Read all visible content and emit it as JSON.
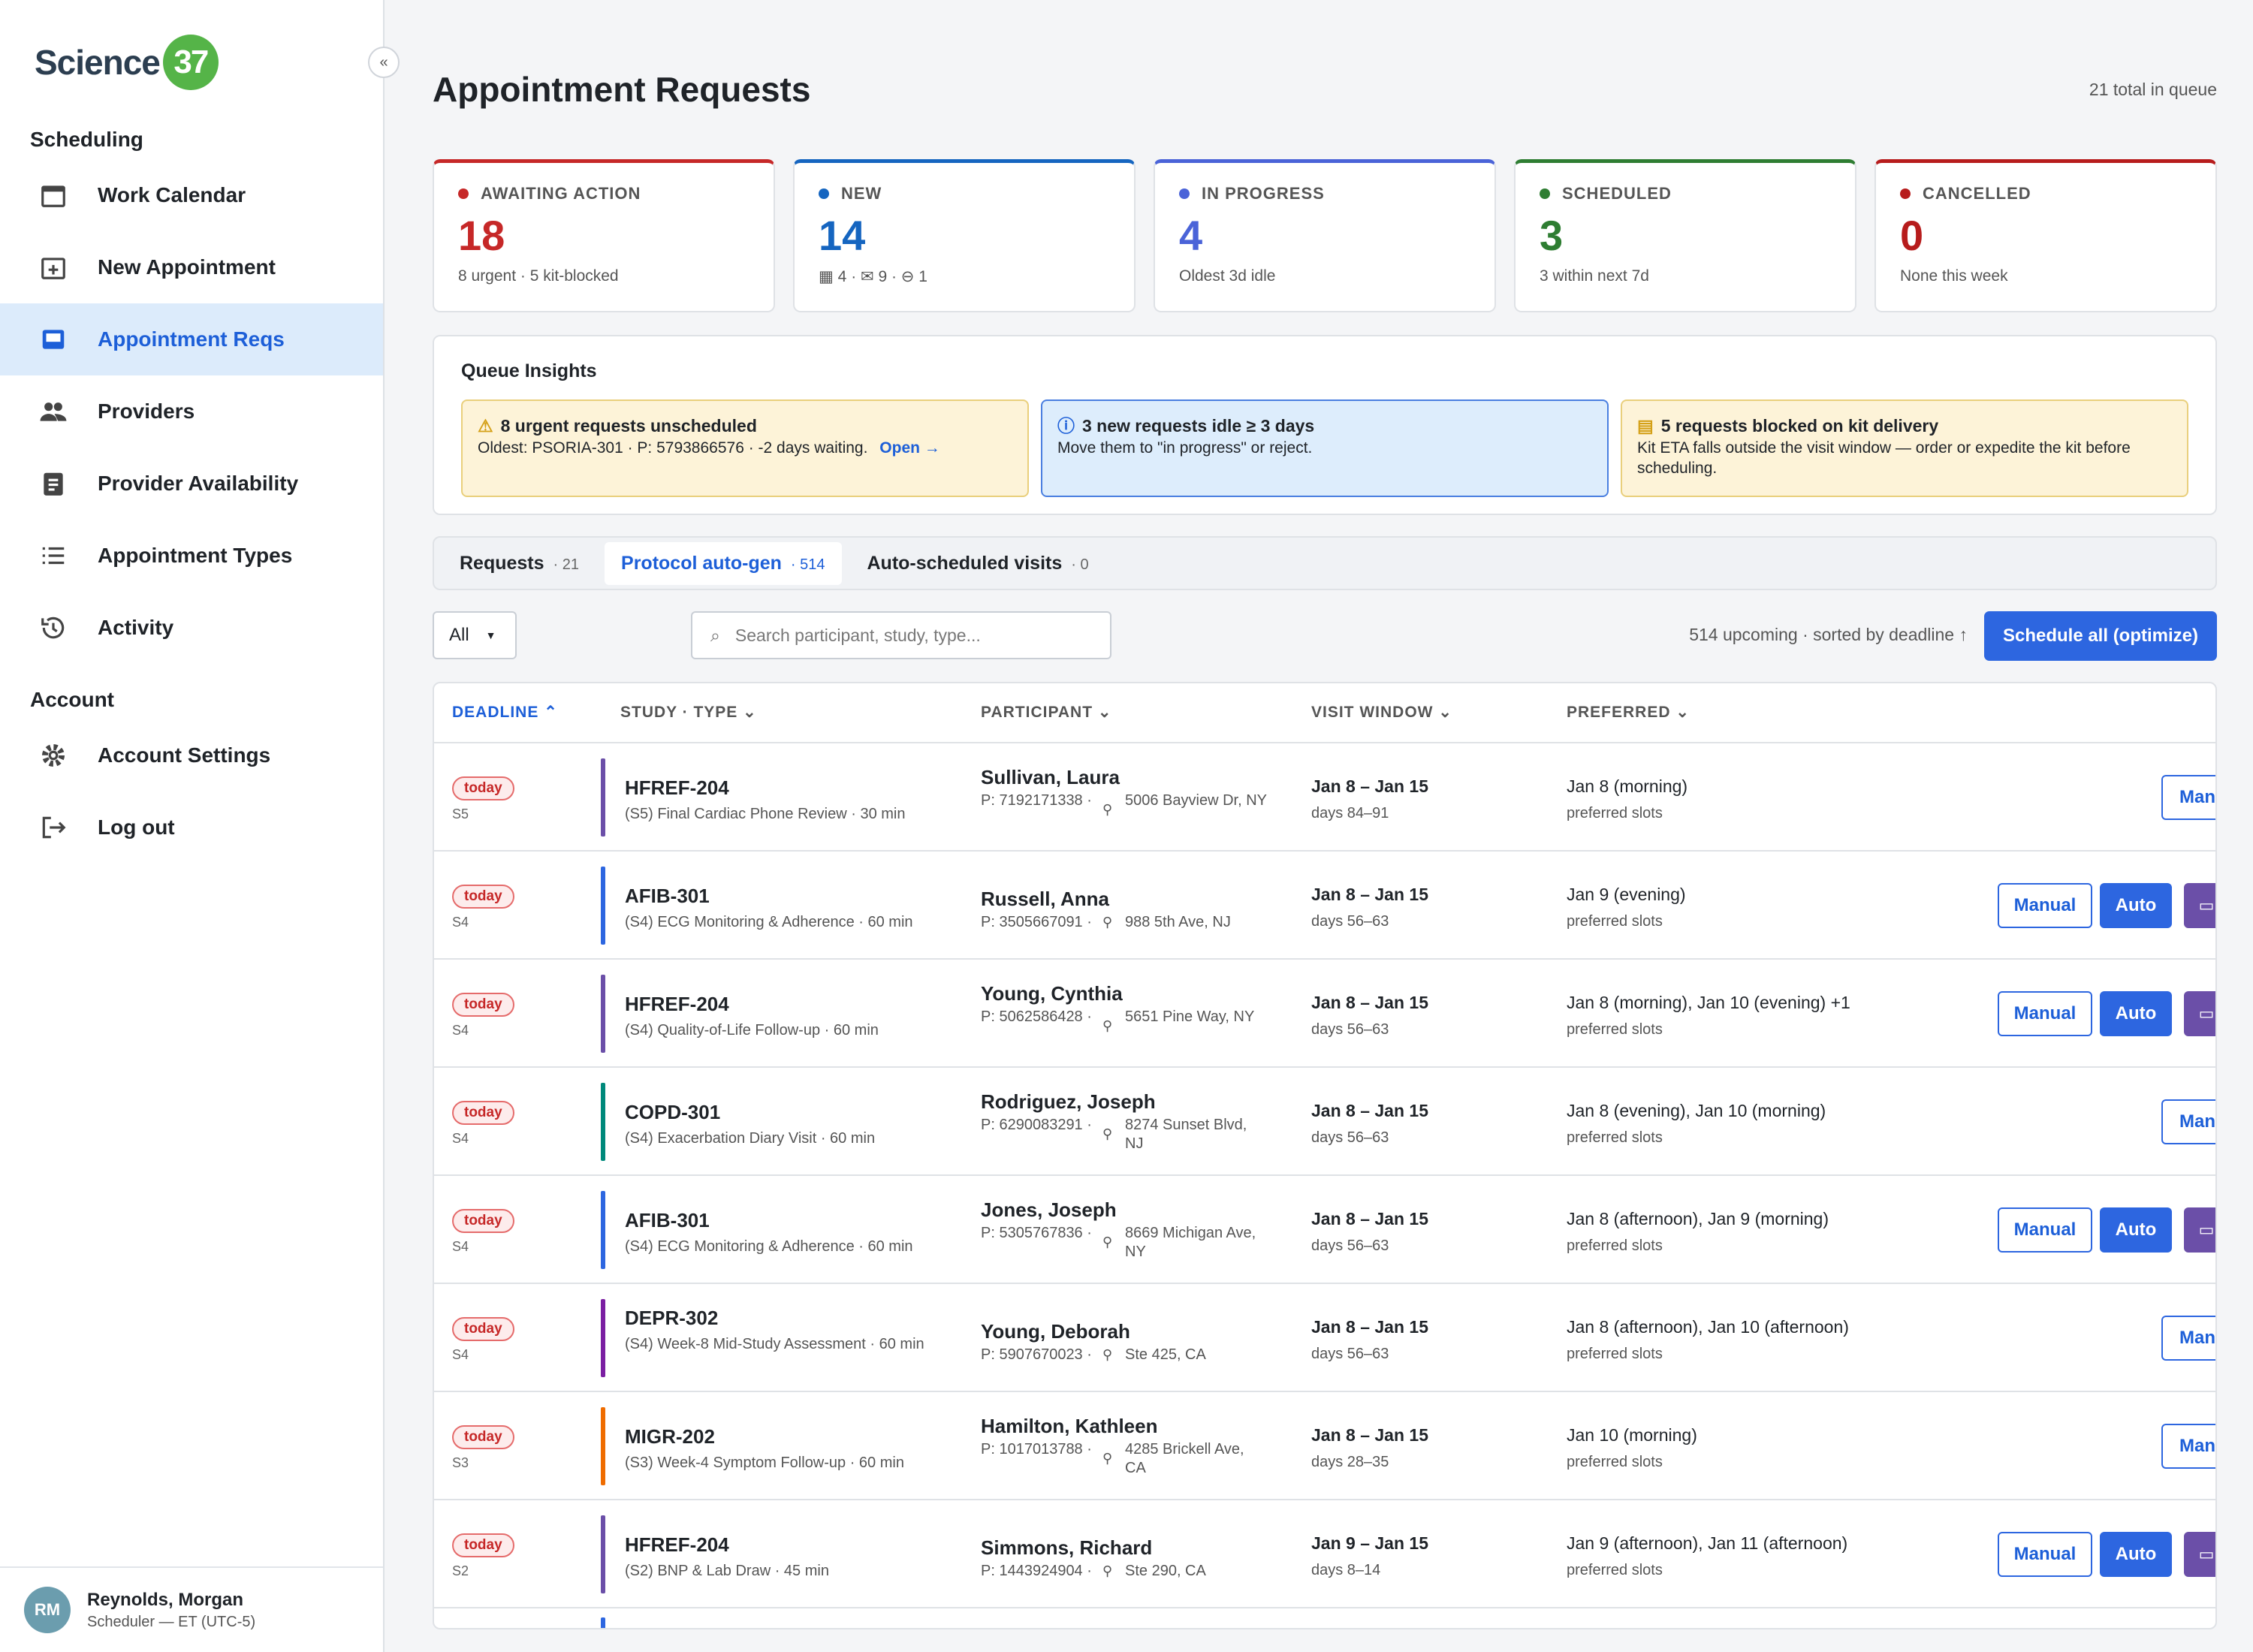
{
  "app": {
    "logo_text": "Science",
    "logo_badge": "37",
    "collapse_glyph": "«"
  },
  "sidebar": {
    "section_scheduling": "Scheduling",
    "section_account": "Account",
    "items": [
      {
        "label": "Work Calendar",
        "icon": "calendar-icon"
      },
      {
        "label": "New Appointment",
        "icon": "calendar-add-icon"
      },
      {
        "label": "Appointment Reqs",
        "icon": "inbox-icon",
        "active": true
      },
      {
        "label": "Providers",
        "icon": "people-icon"
      },
      {
        "label": "Provider Availability",
        "icon": "clipboard-icon"
      },
      {
        "label": "Appointment Types",
        "icon": "list-icon"
      },
      {
        "label": "Activity",
        "icon": "history-icon"
      }
    ],
    "account_items": [
      {
        "label": "Account Settings",
        "icon": "gear-icon"
      },
      {
        "label": "Log out",
        "icon": "logout-icon"
      }
    ],
    "user": {
      "initials": "RM",
      "name": "Reynolds, Morgan",
      "role": "Scheduler — ET (UTC-5)"
    }
  },
  "header": {
    "title": "Appointment Requests",
    "total": "21 total in queue"
  },
  "cards": [
    {
      "label": "AWAITING ACTION",
      "value": "18",
      "sub": "8 urgent · 5 kit-blocked",
      "color": "#c62828"
    },
    {
      "label": "NEW",
      "value": "14",
      "sub": "▦ 4 · ✉ 9 · ⊖ 1",
      "color": "#1565c0"
    },
    {
      "label": "IN PROGRESS",
      "value": "4",
      "sub": "Oldest 3d idle",
      "color": "#4a63d8"
    },
    {
      "label": "SCHEDULED",
      "value": "3",
      "sub": "3 within next 7d",
      "color": "#2e7d32"
    },
    {
      "label": "CANCELLED",
      "value": "0",
      "sub": "None this week",
      "color": "#b71c1c"
    }
  ],
  "insights": {
    "title": "Queue Insights",
    "items": [
      {
        "head": "8 urgent requests unscheduled",
        "body": "Oldest: PSORIA-301 · P: 5793866576 · -2 days waiting.",
        "link": "Open →",
        "icon": "⚠"
      },
      {
        "head": "3 new requests idle ≥ 3 days",
        "body": "Move them to \"in progress\" or reject.",
        "icon": "ⓘ"
      },
      {
        "head": "5 requests blocked on kit delivery",
        "body": "Kit ETA falls outside the visit window — order or expedite the kit before scheduling.",
        "icon": "▤"
      }
    ]
  },
  "tabs": [
    {
      "label": "Requests",
      "count": "· 21"
    },
    {
      "label": "Protocol auto-gen",
      "count": "· 514",
      "active": true
    },
    {
      "label": "Auto-scheduled visits",
      "count": "· 0"
    }
  ],
  "toolbar": {
    "filter": "All",
    "search_placeholder": "Search participant, study, type...",
    "upcoming": "514 upcoming · sorted by deadline ↑",
    "schedule_all": "Schedule all (optimize)"
  },
  "table": {
    "headers": {
      "deadline": "DEADLINE",
      "study": "STUDY · TYPE",
      "participant": "PARTICIPANT",
      "window": "VISIT WINDOW",
      "preferred": "PREFERRED"
    },
    "buttons": {
      "manual": "Manual",
      "manual_short": "Manu",
      "auto": "Auto"
    },
    "rows": [
      {
        "deadline": "today",
        "stage": "S5",
        "study": "HFREF-204",
        "type": "(S5) Final Cardiac Phone Review · 30 min",
        "name": "Sullivan, Laura",
        "phone": "P: 7192171338 ·",
        "addr": "5006 Bayview Dr, NY",
        "window": "Jan 8 – Jan 15",
        "days": "days 84–91",
        "pref": "Jan 8 (morning)",
        "pref_sub": "preferred slots",
        "bar": "#6b4fa8",
        "full": false
      },
      {
        "deadline": "today",
        "stage": "S4",
        "study": "AFIB-301",
        "type": "(S4) ECG Monitoring & Adherence · 60 min",
        "name": "Russell, Anna",
        "phone": "P: 3505667091 ·",
        "addr": "988 5th Ave, NJ",
        "window": "Jan 8 – Jan 15",
        "days": "days 56–63",
        "pref": "Jan 9 (evening)",
        "pref_sub": "preferred slots",
        "bar": "#2d66e0",
        "full": true
      },
      {
        "deadline": "today",
        "stage": "S4",
        "study": "HFREF-204",
        "type": "(S4) Quality-of-Life Follow-up · 60 min",
        "name": "Young, Cynthia",
        "phone": "P: 5062586428 ·",
        "addr": "5651 Pine Way, NY",
        "window": "Jan 8 – Jan 15",
        "days": "days 56–63",
        "pref": "Jan 8 (morning), Jan 10 (evening) +1",
        "pref_sub": "preferred slots",
        "bar": "#6b4fa8",
        "full": true
      },
      {
        "deadline": "today",
        "stage": "S4",
        "study": "COPD-301",
        "type": "(S4) Exacerbation Diary Visit · 60 min",
        "name": "Rodriguez, Joseph",
        "phone": "P: 6290083291 ·",
        "addr": "8274 Sunset Blvd, NJ",
        "window": "Jan 8 – Jan 15",
        "days": "days 56–63",
        "pref": "Jan 8 (evening), Jan 10 (morning)",
        "pref_sub": "preferred slots",
        "bar": "#00897b",
        "full": false
      },
      {
        "deadline": "today",
        "stage": "S4",
        "study": "AFIB-301",
        "type": "(S4) ECG Monitoring & Adherence · 60 min",
        "name": "Jones, Joseph",
        "phone": "P: 5305767836 ·",
        "addr": "8669 Michigan Ave, NY",
        "window": "Jan 8 – Jan 15",
        "days": "days 56–63",
        "pref": "Jan 8 (afternoon), Jan 9 (morning)",
        "pref_sub": "preferred slots",
        "bar": "#2d66e0",
        "full": true
      },
      {
        "deadline": "today",
        "stage": "S4",
        "study": "DEPR-302",
        "type": "(S4) Week-8 Mid-Study Assessment · 60 min",
        "name": "Young, Deborah",
        "phone": "P: 5907670023 ·",
        "addr": "Ste 425, CA",
        "window": "Jan 8 – Jan 15",
        "days": "days 56–63",
        "pref": "Jan 8 (afternoon), Jan 10 (afternoon)",
        "pref_sub": "preferred slots",
        "bar": "#7b1fa2",
        "full": false
      },
      {
        "deadline": "today",
        "stage": "S3",
        "study": "MIGR-202",
        "type": "(S3) Week-4 Symptom Follow-up · 60 min",
        "name": "Hamilton, Kathleen",
        "phone": "P: 1017013788 ·",
        "addr": "4285 Brickell Ave, CA",
        "window": "Jan 8 – Jan 15",
        "days": "days 28–35",
        "pref": "Jan 10 (morning)",
        "pref_sub": "preferred slots",
        "bar": "#ef6c00",
        "full": false
      },
      {
        "deadline": "today",
        "stage": "S2",
        "study": "HFREF-204",
        "type": "(S2) BNP & Lab Draw · 45 min",
        "name": "Simmons, Richard",
        "phone": "P: 1443924904 ·",
        "addr": "Ste 290, CA",
        "window": "Jan 9 – Jan 15",
        "days": "days 8–14",
        "pref": "Jan 9 (afternoon), Jan 11 (afternoon)",
        "pref_sub": "preferred slots",
        "bar": "#6b4fa8",
        "full": true
      }
    ]
  }
}
